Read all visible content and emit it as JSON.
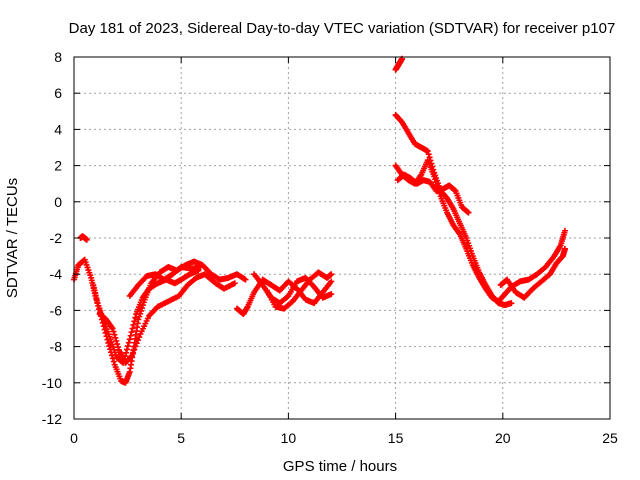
{
  "chart_data": {
    "type": "scatter",
    "title": "Day 181 of 2023, Sidereal Day-to-day VTEC variation (SDTVAR) for receiver p107",
    "xlabel": "GPS time / hours",
    "ylabel": "SDTVAR / TECUs",
    "xlim": [
      0,
      25
    ],
    "ylim": [
      -12,
      8
    ],
    "x_ticks": [
      0,
      5,
      10,
      15,
      20,
      25
    ],
    "y_ticks": [
      -12,
      -10,
      -8,
      -6,
      -4,
      -2,
      0,
      2,
      4,
      6,
      8
    ],
    "grid": true,
    "marker": "+",
    "marker_color": "#ff0000",
    "series": [
      {
        "name": "trace-1",
        "points": [
          [
            0.0,
            -4.3
          ],
          [
            0.2,
            -3.5
          ],
          [
            0.5,
            -3.2
          ],
          [
            0.8,
            -4.2
          ],
          [
            1.0,
            -5.2
          ],
          [
            1.3,
            -6.5
          ],
          [
            1.6,
            -7.8
          ],
          [
            1.9,
            -9.0
          ],
          [
            2.2,
            -9.9
          ],
          [
            2.4,
            -10.0
          ],
          [
            2.6,
            -9.4
          ],
          [
            2.8,
            -8.0
          ],
          [
            3.0,
            -6.5
          ],
          [
            3.3,
            -5.4
          ],
          [
            3.6,
            -4.5
          ],
          [
            4.0,
            -3.9
          ],
          [
            4.4,
            -3.6
          ],
          [
            4.8,
            -3.8
          ],
          [
            5.2,
            -3.5
          ],
          [
            5.6,
            -3.3
          ],
          [
            6.0,
            -3.5
          ],
          [
            6.4,
            -4.0
          ],
          [
            6.8,
            -4.3
          ],
          [
            7.2,
            -4.2
          ],
          [
            7.6,
            -4.0
          ],
          [
            8.0,
            -4.3
          ]
        ]
      },
      {
        "name": "trace-2",
        "points": [
          [
            0.9,
            -4.6
          ],
          [
            1.1,
            -5.6
          ],
          [
            1.4,
            -6.6
          ],
          [
            1.7,
            -7.6
          ],
          [
            2.0,
            -8.6
          ],
          [
            2.3,
            -8.9
          ],
          [
            2.6,
            -7.6
          ],
          [
            2.9,
            -6.2
          ],
          [
            3.2,
            -5.3
          ],
          [
            3.5,
            -4.8
          ],
          [
            3.9,
            -4.5
          ],
          [
            4.3,
            -4.3
          ],
          [
            4.7,
            -4.5
          ],
          [
            5.0,
            -4.3
          ],
          [
            5.4,
            -4.0
          ],
          [
            5.8,
            -3.8
          ]
        ]
      },
      {
        "name": "trace-3",
        "points": [
          [
            1.2,
            -6.2
          ],
          [
            1.5,
            -6.5
          ],
          [
            1.8,
            -7.0
          ],
          [
            2.1,
            -8.2
          ],
          [
            2.4,
            -8.9
          ],
          [
            2.7,
            -8.5
          ],
          [
            3.1,
            -7.3
          ],
          [
            3.5,
            -6.3
          ],
          [
            3.9,
            -5.8
          ],
          [
            4.4,
            -5.5
          ],
          [
            4.9,
            -5.2
          ],
          [
            5.3,
            -4.6
          ],
          [
            5.7,
            -4.2
          ],
          [
            6.1,
            -4.0
          ],
          [
            6.6,
            -4.5
          ],
          [
            7.0,
            -4.8
          ],
          [
            7.5,
            -4.5
          ]
        ]
      },
      {
        "name": "trace-4",
        "points": [
          [
            2.6,
            -5.2
          ],
          [
            3.0,
            -4.6
          ],
          [
            3.4,
            -4.1
          ],
          [
            3.8,
            -4.0
          ],
          [
            4.2,
            -4.3
          ],
          [
            4.6,
            -4.0
          ],
          [
            5.0,
            -3.6
          ],
          [
            5.5,
            -3.7
          ],
          [
            5.9,
            -3.6
          ]
        ]
      },
      {
        "name": "trace-5",
        "points": [
          [
            7.6,
            -5.9
          ],
          [
            7.9,
            -6.2
          ],
          [
            8.1,
            -5.8
          ],
          [
            8.4,
            -5.0
          ],
          [
            8.8,
            -4.3
          ],
          [
            9.2,
            -4.6
          ],
          [
            9.6,
            -4.9
          ],
          [
            10.0,
            -4.4
          ],
          [
            10.4,
            -4.8
          ],
          [
            10.8,
            -5.4
          ],
          [
            11.2,
            -5.6
          ],
          [
            11.6,
            -5.0
          ],
          [
            12.0,
            -4.4
          ]
        ]
      },
      {
        "name": "trace-6",
        "points": [
          [
            8.4,
            -4.0
          ],
          [
            8.8,
            -4.6
          ],
          [
            9.2,
            -5.3
          ],
          [
            9.6,
            -5.6
          ],
          [
            10.0,
            -5.2
          ],
          [
            10.4,
            -4.4
          ],
          [
            10.8,
            -4.2
          ],
          [
            11.2,
            -4.7
          ],
          [
            11.6,
            -5.3
          ],
          [
            12.0,
            -5.1
          ]
        ]
      },
      {
        "name": "trace-7",
        "points": [
          [
            9.0,
            -4.9
          ],
          [
            9.4,
            -5.8
          ],
          [
            9.8,
            -5.9
          ],
          [
            10.2,
            -5.5
          ],
          [
            10.6,
            -4.9
          ],
          [
            11.0,
            -4.3
          ],
          [
            11.4,
            -3.9
          ],
          [
            11.8,
            -4.2
          ],
          [
            12.0,
            -4.0
          ]
        ]
      },
      {
        "name": "trace-8",
        "points": [
          [
            15.0,
            7.3
          ],
          [
            15.1,
            7.5
          ],
          [
            15.2,
            7.7
          ],
          [
            15.3,
            7.9
          ]
        ]
      },
      {
        "name": "trace-9",
        "points": [
          [
            15.0,
            4.8
          ],
          [
            15.3,
            4.4
          ],
          [
            15.6,
            3.8
          ],
          [
            15.9,
            3.2
          ],
          [
            16.2,
            3.0
          ],
          [
            16.5,
            2.8
          ],
          [
            16.8,
            1.6
          ],
          [
            17.1,
            0.6
          ],
          [
            17.4,
            0.2
          ],
          [
            17.7,
            -0.4
          ],
          [
            18.0,
            -1.2
          ],
          [
            18.3,
            -2.0
          ],
          [
            18.6,
            -3.0
          ],
          [
            18.9,
            -3.9
          ],
          [
            19.2,
            -4.6
          ],
          [
            19.5,
            -5.2
          ],
          [
            19.8,
            -5.6
          ],
          [
            20.1,
            -5.7
          ],
          [
            20.4,
            -5.6
          ]
        ]
      },
      {
        "name": "trace-10",
        "points": [
          [
            15.0,
            2.0
          ],
          [
            15.3,
            1.5
          ],
          [
            15.6,
            1.2
          ],
          [
            15.9,
            1.0
          ],
          [
            16.2,
            1.5
          ],
          [
            16.5,
            2.3
          ],
          [
            16.8,
            1.4
          ],
          [
            17.1,
            0.3
          ],
          [
            17.4,
            -0.6
          ],
          [
            17.7,
            -1.3
          ],
          [
            18.0,
            -1.8
          ],
          [
            18.3,
            -2.6
          ],
          [
            18.6,
            -3.5
          ],
          [
            18.9,
            -4.2
          ],
          [
            19.2,
            -4.8
          ],
          [
            19.5,
            -5.3
          ],
          [
            19.8,
            -5.5
          ],
          [
            20.1,
            -5.1
          ],
          [
            20.4,
            -4.7
          ],
          [
            20.8,
            -4.4
          ],
          [
            21.2,
            -4.3
          ],
          [
            21.6,
            -4.0
          ],
          [
            22.0,
            -3.6
          ],
          [
            22.4,
            -3.0
          ],
          [
            22.7,
            -2.4
          ],
          [
            22.9,
            -1.6
          ]
        ]
      },
      {
        "name": "trace-11",
        "points": [
          [
            15.1,
            1.2
          ],
          [
            15.4,
            1.5
          ],
          [
            15.7,
            1.3
          ],
          [
            16.0,
            1.0
          ],
          [
            16.3,
            1.2
          ],
          [
            16.6,
            1.1
          ],
          [
            16.9,
            0.6
          ],
          [
            17.2,
            0.7
          ],
          [
            17.5,
            0.9
          ],
          [
            17.8,
            0.6
          ],
          [
            18.1,
            -0.3
          ],
          [
            18.4,
            -0.6
          ]
        ]
      },
      {
        "name": "trace-12",
        "points": [
          [
            19.9,
            -4.6
          ],
          [
            20.2,
            -4.3
          ],
          [
            20.6,
            -5.0
          ],
          [
            21.0,
            -5.3
          ],
          [
            21.4,
            -4.8
          ],
          [
            21.8,
            -4.4
          ],
          [
            22.2,
            -4.0
          ],
          [
            22.5,
            -3.4
          ],
          [
            22.8,
            -3.0
          ],
          [
            22.9,
            -2.6
          ]
        ]
      },
      {
        "name": "trace-13",
        "points": [
          [
            0.3,
            -2.0
          ],
          [
            0.4,
            -1.9
          ],
          [
            0.5,
            -2.0
          ],
          [
            0.6,
            -2.1
          ]
        ]
      }
    ]
  }
}
